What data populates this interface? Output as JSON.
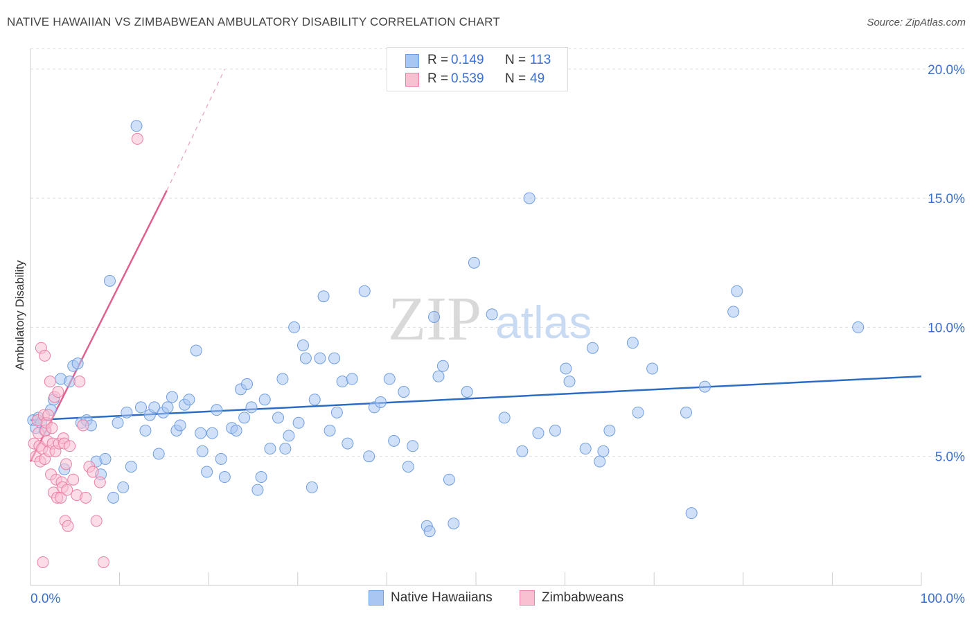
{
  "header": {
    "title": "NATIVE HAWAIIAN VS ZIMBABWEAN AMBULATORY DISABILITY CORRELATION CHART",
    "source": "Source: ZipAtlas.com"
  },
  "watermark": {
    "part1": "ZIP",
    "part2": "atlas"
  },
  "stats": [
    {
      "r_label": "R =",
      "r_value": "0.149",
      "n_label": "N =",
      "n_value": "113",
      "color": "#a9c6f2",
      "border": "#6f9ee0"
    },
    {
      "r_label": "R =",
      "r_value": "0.539",
      "n_label": "N =",
      "n_value": "49",
      "color": "#f9c0d2",
      "border": "#ec7fa3"
    }
  ],
  "legend": [
    {
      "label": "Native Hawaiians",
      "color": "#a9c6f2",
      "border": "#6f9ee0"
    },
    {
      "label": "Zimbabweans",
      "color": "#f9c0d2",
      "border": "#ec7fa3"
    }
  ],
  "chart_data": {
    "type": "scatter",
    "xlabel": "",
    "ylabel": "Ambulatory Disability",
    "xlim": [
      0,
      100
    ],
    "ylim": [
      0,
      20.8
    ],
    "x_tick_labels": [
      "0.0%",
      "100.0%"
    ],
    "y_ticks": [
      5,
      10,
      15,
      20
    ],
    "y_tick_labels": [
      "5.0%",
      "10.0%",
      "15.0%",
      "20.0%"
    ],
    "grid": true,
    "series": [
      {
        "name": "Native Hawaiians",
        "color": "#a9c6f2",
        "stroke": "#6f9ee0",
        "trend": {
          "x": [
            0,
            100
          ],
          "y": [
            6.4,
            8.1
          ],
          "color": "#2b6cc4"
        },
        "points": [
          [
            0.3,
            6.4
          ],
          [
            0.6,
            6.1
          ],
          [
            0.9,
            6.5
          ],
          [
            1.2,
            6.3
          ],
          [
            1.6,
            6.0
          ],
          [
            2.3,
            6.8
          ],
          [
            2.6,
            7.2
          ],
          [
            3.4,
            8.0
          ],
          [
            3.8,
            4.5
          ],
          [
            4.4,
            7.9
          ],
          [
            4.8,
            8.5
          ],
          [
            5.3,
            8.6
          ],
          [
            5.7,
            6.3
          ],
          [
            6.3,
            6.4
          ],
          [
            6.8,
            6.2
          ],
          [
            7.4,
            4.8
          ],
          [
            7.9,
            4.3
          ],
          [
            8.4,
            4.9
          ],
          [
            8.9,
            11.8
          ],
          [
            9.3,
            3.4
          ],
          [
            9.8,
            6.3
          ],
          [
            10.4,
            3.8
          ],
          [
            10.8,
            6.7
          ],
          [
            11.3,
            4.6
          ],
          [
            11.9,
            17.8
          ],
          [
            12.4,
            6.9
          ],
          [
            12.9,
            6.0
          ],
          [
            13.4,
            6.6
          ],
          [
            13.9,
            6.9
          ],
          [
            14.4,
            5.1
          ],
          [
            14.9,
            6.7
          ],
          [
            15.4,
            6.9
          ],
          [
            15.9,
            7.3
          ],
          [
            16.4,
            6.0
          ],
          [
            16.8,
            6.2
          ],
          [
            17.3,
            7.0
          ],
          [
            17.8,
            7.2
          ],
          [
            18.6,
            9.1
          ],
          [
            19.1,
            5.9
          ],
          [
            19.3,
            5.2
          ],
          [
            19.8,
            4.4
          ],
          [
            20.4,
            5.9
          ],
          [
            20.9,
            6.8
          ],
          [
            21.4,
            4.9
          ],
          [
            21.8,
            4.2
          ],
          [
            22.6,
            6.1
          ],
          [
            23.1,
            6.0
          ],
          [
            23.6,
            7.6
          ],
          [
            24.0,
            6.5
          ],
          [
            24.3,
            7.8
          ],
          [
            24.8,
            6.9
          ],
          [
            25.5,
            3.7
          ],
          [
            25.9,
            4.2
          ],
          [
            26.3,
            7.2
          ],
          [
            26.9,
            5.3
          ],
          [
            27.8,
            6.5
          ],
          [
            28.3,
            8.0
          ],
          [
            28.6,
            5.3
          ],
          [
            29.0,
            5.8
          ],
          [
            29.6,
            10.0
          ],
          [
            30.1,
            6.3
          ],
          [
            30.6,
            9.3
          ],
          [
            30.9,
            8.8
          ],
          [
            31.6,
            3.8
          ],
          [
            31.9,
            7.2
          ],
          [
            32.5,
            8.8
          ],
          [
            32.9,
            11.2
          ],
          [
            33.6,
            6.0
          ],
          [
            34.1,
            8.8
          ],
          [
            34.4,
            6.7
          ],
          [
            35.0,
            7.9
          ],
          [
            35.6,
            5.5
          ],
          [
            36.1,
            8.0
          ],
          [
            37.5,
            11.4
          ],
          [
            38.0,
            5.0
          ],
          [
            38.6,
            6.9
          ],
          [
            39.3,
            7.1
          ],
          [
            40.3,
            8.0
          ],
          [
            40.8,
            5.6
          ],
          [
            41.9,
            7.5
          ],
          [
            42.4,
            4.6
          ],
          [
            42.9,
            5.4
          ],
          [
            44.5,
            2.3
          ],
          [
            44.8,
            2.1
          ],
          [
            45.3,
            10.4
          ],
          [
            45.8,
            8.1
          ],
          [
            46.3,
            8.5
          ],
          [
            47.0,
            4.1
          ],
          [
            47.5,
            2.4
          ],
          [
            49.0,
            7.5
          ],
          [
            49.8,
            12.5
          ],
          [
            51.8,
            10.5
          ],
          [
            53.2,
            6.5
          ],
          [
            55.2,
            5.2
          ],
          [
            57.0,
            5.9
          ],
          [
            58.9,
            6.0
          ],
          [
            60.1,
            8.4
          ],
          [
            60.5,
            7.9
          ],
          [
            62.3,
            5.3
          ],
          [
            63.1,
            9.2
          ],
          [
            63.9,
            4.8
          ],
          [
            64.3,
            5.2
          ],
          [
            65.0,
            6.0
          ],
          [
            67.6,
            9.4
          ],
          [
            68.2,
            6.7
          ],
          [
            69.8,
            8.4
          ],
          [
            73.6,
            6.7
          ],
          [
            74.2,
            2.8
          ],
          [
            75.7,
            7.7
          ],
          [
            78.9,
            10.6
          ],
          [
            79.3,
            11.4
          ],
          [
            92.9,
            10.0
          ],
          [
            56.0,
            15.0
          ]
        ]
      },
      {
        "name": "Zimbabweans",
        "color": "#f9c0d2",
        "stroke": "#ec7fa3",
        "trend": {
          "x": [
            0,
            15.3
          ],
          "y": [
            4.8,
            15.3
          ],
          "dashed_to": [
            21.8,
            20.0
          ],
          "color": "#e0608f"
        },
        "points": [
          [
            0.4,
            5.5
          ],
          [
            0.6,
            5.0
          ],
          [
            0.8,
            6.4
          ],
          [
            0.9,
            5.9
          ],
          [
            1.0,
            5.4
          ],
          [
            1.1,
            4.8
          ],
          [
            1.2,
            9.2
          ],
          [
            1.3,
            5.3
          ],
          [
            1.5,
            6.6
          ],
          [
            1.6,
            4.9
          ],
          [
            1.6,
            8.9
          ],
          [
            1.7,
            6.0
          ],
          [
            1.8,
            6.3
          ],
          [
            1.9,
            5.6
          ],
          [
            2.0,
            6.6
          ],
          [
            2.1,
            5.2
          ],
          [
            2.2,
            7.9
          ],
          [
            2.3,
            4.3
          ],
          [
            2.4,
            6.1
          ],
          [
            2.5,
            5.5
          ],
          [
            2.6,
            3.6
          ],
          [
            2.7,
            7.3
          ],
          [
            2.8,
            5.2
          ],
          [
            2.9,
            4.1
          ],
          [
            3.0,
            3.4
          ],
          [
            3.1,
            7.5
          ],
          [
            3.2,
            5.5
          ],
          [
            3.4,
            3.4
          ],
          [
            3.5,
            4.0
          ],
          [
            3.6,
            3.8
          ],
          [
            3.7,
            5.7
          ],
          [
            3.8,
            5.5
          ],
          [
            3.9,
            2.5
          ],
          [
            4.0,
            4.7
          ],
          [
            4.1,
            3.7
          ],
          [
            4.2,
            2.3
          ],
          [
            4.4,
            5.4
          ],
          [
            4.8,
            4.1
          ],
          [
            5.2,
            3.5
          ],
          [
            5.5,
            7.9
          ],
          [
            5.9,
            6.2
          ],
          [
            6.2,
            3.4
          ],
          [
            6.6,
            4.6
          ],
          [
            7.0,
            4.4
          ],
          [
            7.4,
            2.5
          ],
          [
            7.8,
            4.0
          ],
          [
            8.2,
            0.9
          ],
          [
            12.0,
            17.3
          ],
          [
            1.4,
            0.9
          ]
        ]
      }
    ]
  }
}
